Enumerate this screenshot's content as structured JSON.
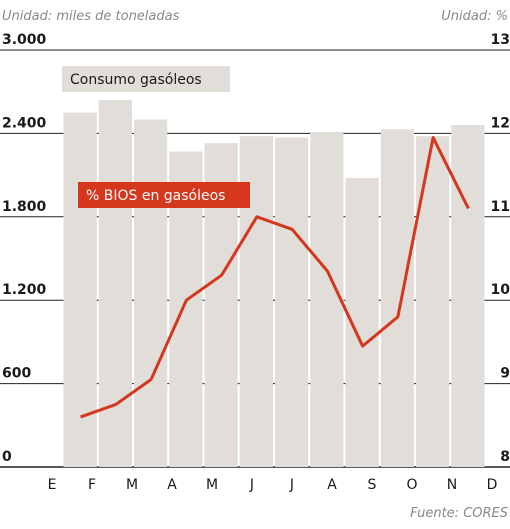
{
  "chart_data": {
    "type": "bar_line",
    "y_unit_label": "Unidad: miles de toneladas",
    "y2_unit_label": "Unidad: %",
    "source": "Fuente: CORES",
    "categories": [
      "E",
      "F",
      "M",
      "A",
      "M",
      "J",
      "J",
      "A",
      "S",
      "O",
      "N",
      "D"
    ],
    "series": [
      {
        "name": "Consumo gasóleos",
        "type": "bar",
        "color": "#e1ddd9",
        "values": [
          2550,
          2640,
          2500,
          2270,
          2330,
          2380,
          2370,
          2410,
          2080,
          2430,
          2380,
          2460
        ]
      },
      {
        "name": "% BIOS en gasóleos",
        "type": "line",
        "axis": "y2",
        "color": "#d4371c",
        "values": [
          8.6,
          8.75,
          9.05,
          10.0,
          10.3,
          11.0,
          10.85,
          10.35,
          9.45,
          9.8,
          11.95,
          11.1
        ]
      }
    ],
    "ylim": [
      0,
      3000
    ],
    "yticks": [
      0,
      600,
      {
        "value": 1200,
        "label": "1.200"
      },
      {
        "value": 1800,
        "label": "1.800"
      },
      {
        "value": 2400,
        "label": "2.400"
      },
      {
        "value": 3000,
        "label": "3.000"
      }
    ],
    "y2lim": [
      8,
      13
    ],
    "y2ticks": [
      8,
      9,
      10,
      11,
      12,
      13
    ],
    "grid": true
  }
}
